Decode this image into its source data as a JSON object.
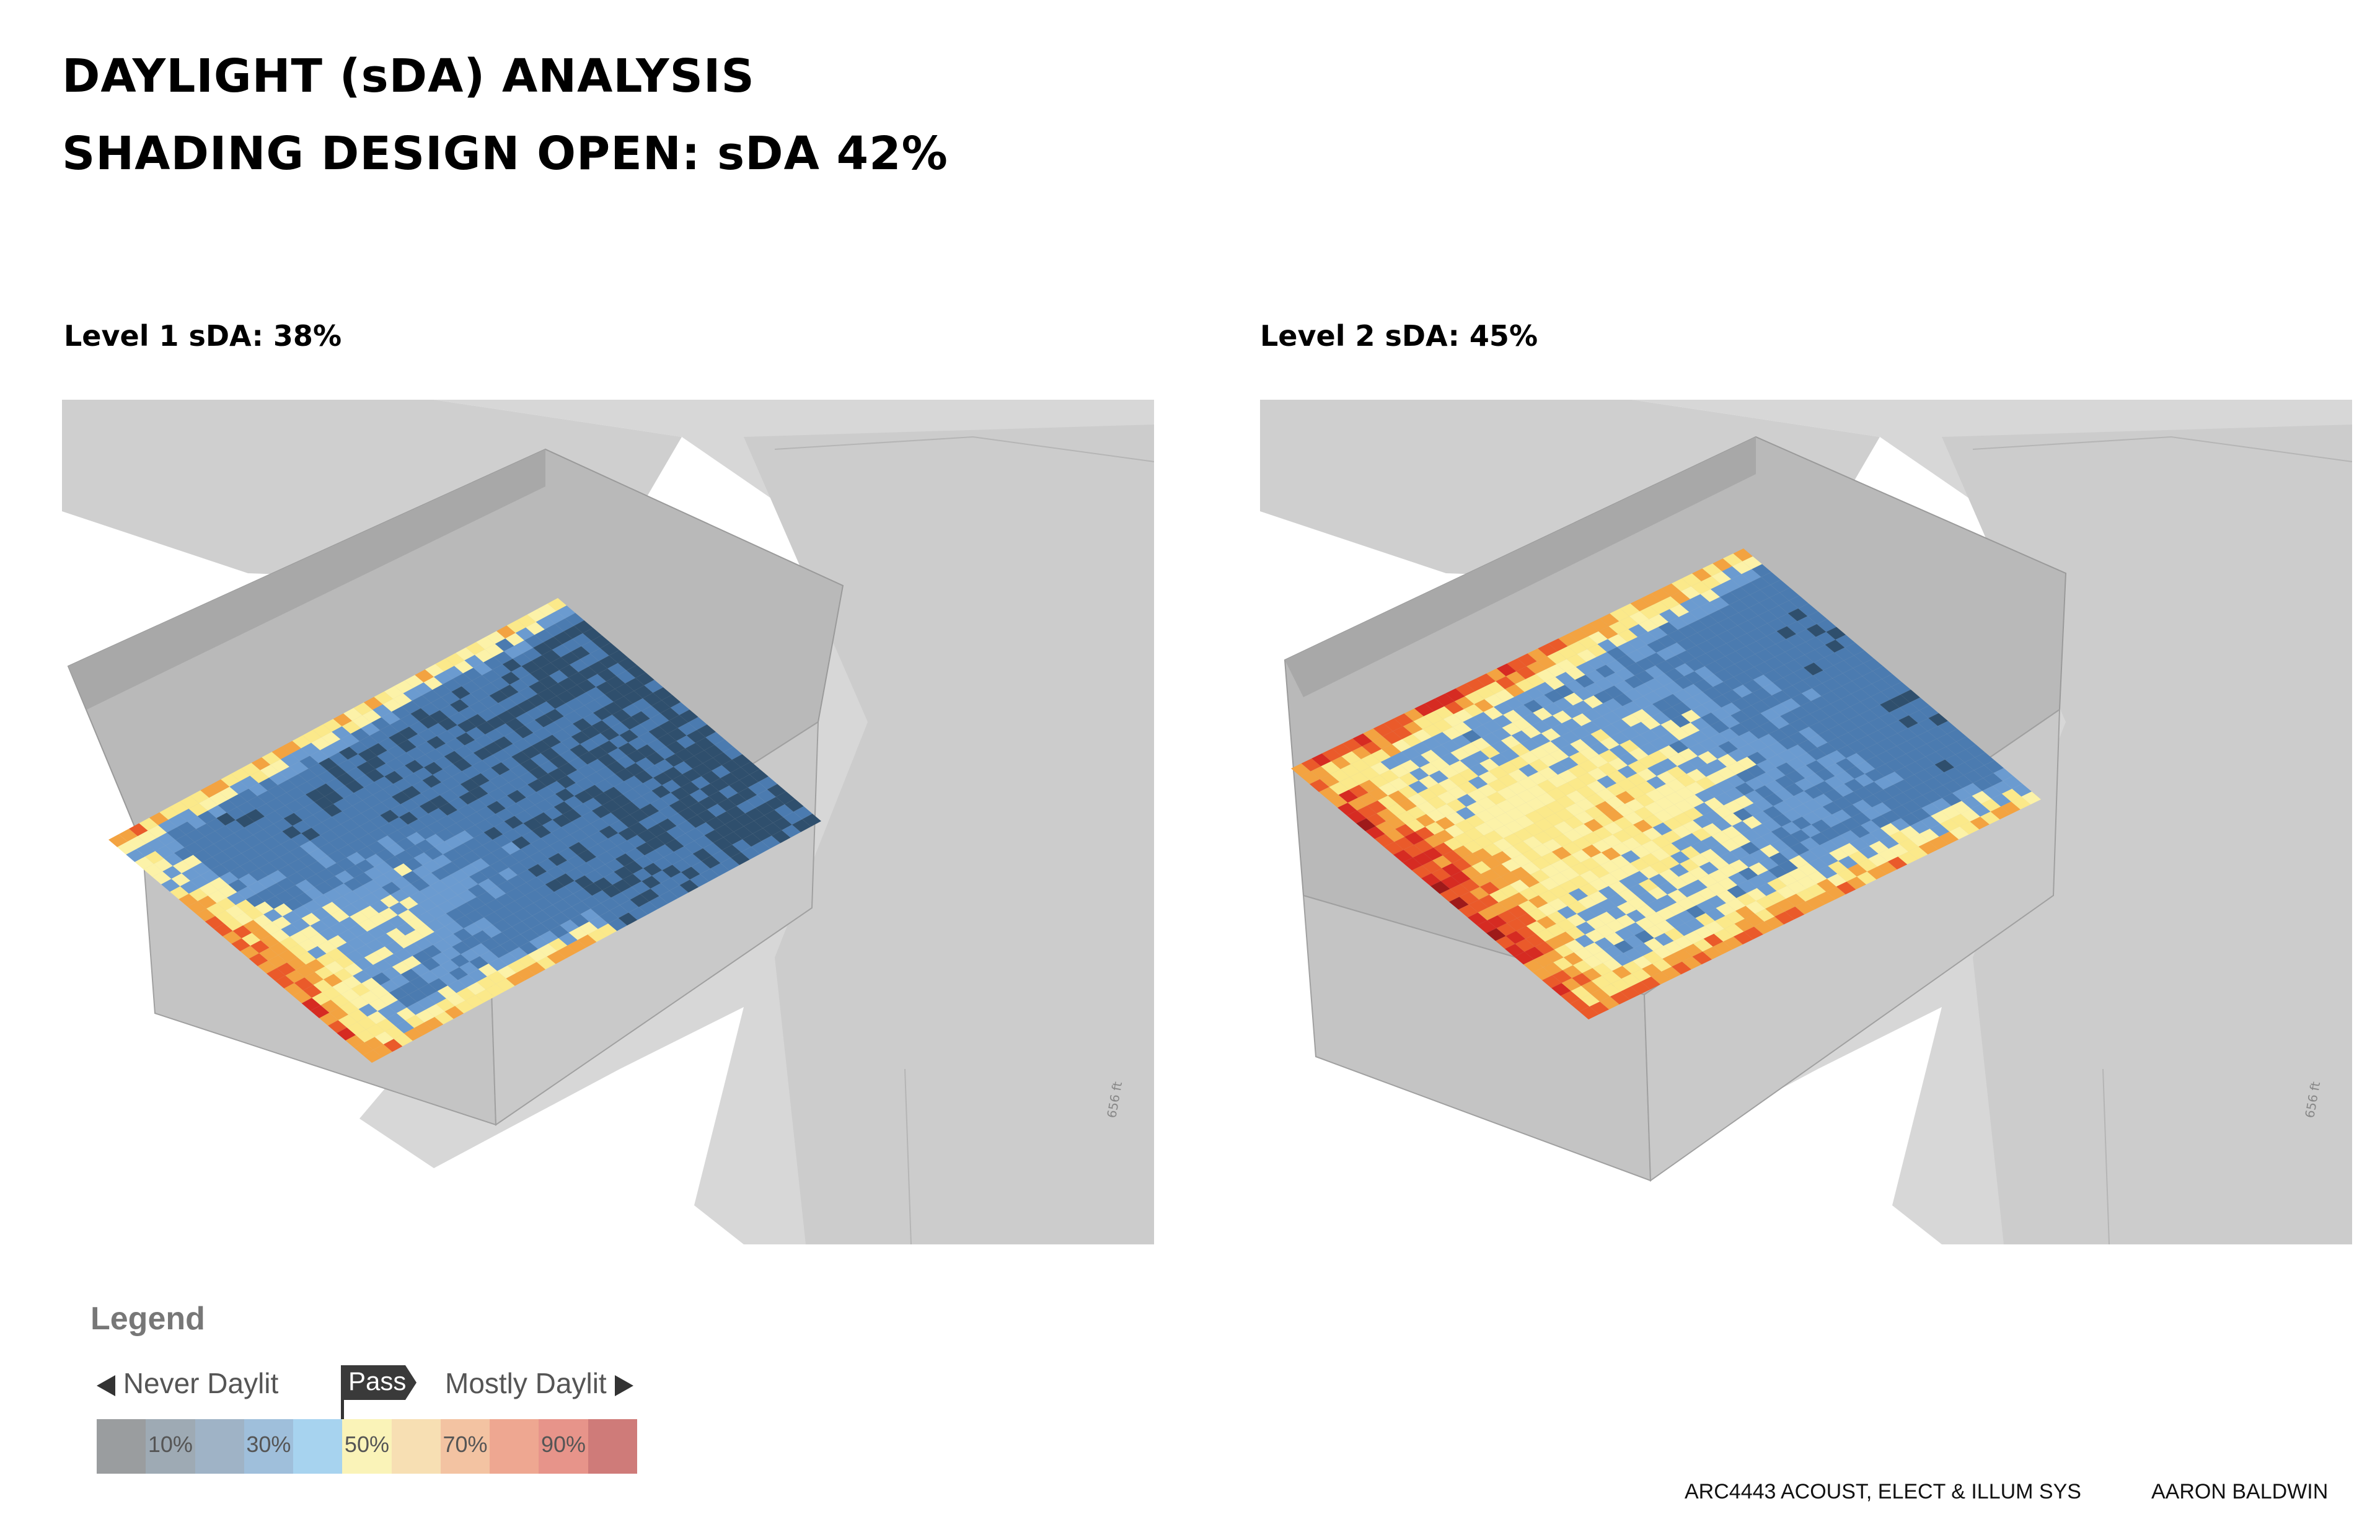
{
  "header": {
    "title_line1": "DAYLIGHT (sDA) ANALYSIS",
    "title_line2": "SHADING DESIGN OPEN: sDA 42%"
  },
  "panels": [
    {
      "label": "Level 1 sDA: 38%",
      "level": 1,
      "sda_percent": 38,
      "scale_label": "656 ft"
    },
    {
      "label": "Level 2 sDA: 45%",
      "level": 2,
      "sda_percent": 45,
      "scale_label": "656 ft"
    }
  ],
  "legend": {
    "title": "Legend",
    "never_label": "Never Daylit",
    "mostly_label": "Mostly Daylit",
    "pass_label": "Pass",
    "segments": [
      {
        "label": "",
        "color": "#9a9d9f"
      },
      {
        "label": "10%",
        "color": "#9eaab4"
      },
      {
        "label": "",
        "color": "#9fb3c6"
      },
      {
        "label": "30%",
        "color": "#9fbfdb"
      },
      {
        "label": "",
        "color": "#a7d3ef"
      },
      {
        "label": "50%",
        "color": "#faf3b8"
      },
      {
        "label": "",
        "color": "#f7dfb3"
      },
      {
        "label": "70%",
        "color": "#f3c3a2"
      },
      {
        "label": "",
        "color": "#eea791"
      },
      {
        "label": "90%",
        "color": "#e7948a"
      },
      {
        "label": "",
        "color": "#cf7b79"
      }
    ]
  },
  "heatmap_colors": {
    "deep_blue": "#2f4f6d",
    "blue": "#4b7bb0",
    "light_blue": "#6b9bd0",
    "yellow": "#fbe98a",
    "pale_yellow": "#fcf2a8",
    "orange": "#f3a341",
    "red_orange": "#ea5a2a",
    "red": "#d62b22",
    "dark_red": "#9e1a1a"
  },
  "footer": {
    "course": "ARC4443 ACOUST, ELECT & ILLUM SYS",
    "author": "AARON BALDWIN"
  }
}
